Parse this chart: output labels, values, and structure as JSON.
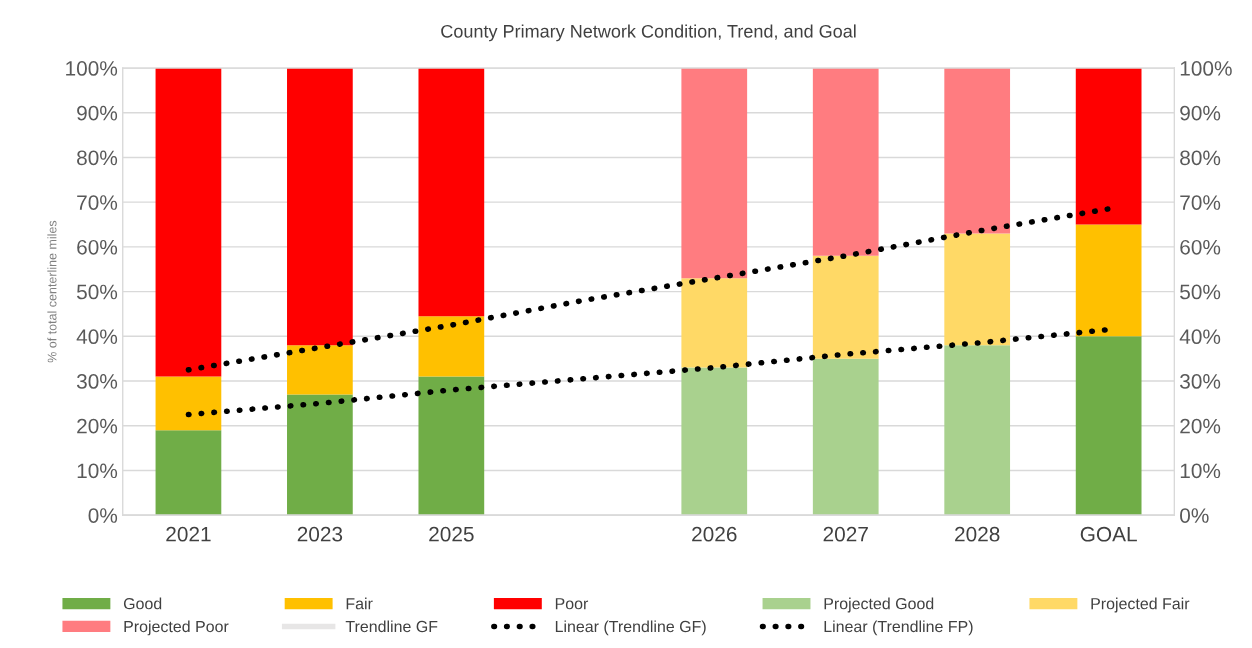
{
  "chart_data": {
    "type": "bar",
    "stacked": true,
    "title": "County Primary Network Condition, Trend, and Goal",
    "ylabel": "% of total centerline miles",
    "categories": [
      "2021",
      "2023",
      "2025",
      null,
      "2026",
      "2027",
      "2028",
      "GOAL"
    ],
    "series": [
      {
        "name": "Good",
        "color": "#70ad47",
        "values": [
          19,
          27,
          31,
          null,
          null,
          null,
          null,
          40
        ]
      },
      {
        "name": "Fair",
        "color": "#ffc000",
        "values": [
          12,
          11,
          13.5,
          null,
          null,
          null,
          null,
          25
        ]
      },
      {
        "name": "Poor",
        "color": "#ff0000",
        "values": [
          69,
          62,
          55.5,
          null,
          null,
          null,
          null,
          35
        ]
      },
      {
        "name": "Projected Good",
        "color": "#a9d18e",
        "values": [
          null,
          null,
          null,
          null,
          33,
          35,
          38,
          null
        ]
      },
      {
        "name": "Projected Fair",
        "color": "#ffd966",
        "values": [
          null,
          null,
          null,
          null,
          20,
          23,
          25,
          null
        ]
      },
      {
        "name": "Projected Poor",
        "color": "#ff7c80",
        "values": [
          null,
          null,
          null,
          null,
          47,
          42,
          37,
          null
        ]
      },
      {
        "name": "Trendline GF",
        "type": "line",
        "color": "#e7e6e6",
        "values": [
          null,
          null,
          null,
          null,
          null,
          null,
          null,
          null
        ]
      },
      {
        "name": "Linear (Trendline GF)",
        "type": "line",
        "color": "#000000",
        "line_style": "dotted",
        "values": [
          22.5,
          25,
          28,
          30.5,
          33,
          36,
          38.5,
          41.5
        ]
      },
      {
        "name": "Linear (Trendline FP)",
        "type": "line",
        "color": "#000000",
        "line_style": "dotted",
        "values": [
          32.5,
          37.5,
          42.5,
          48,
          53,
          58,
          63.5,
          68.5
        ]
      }
    ],
    "ylim": [
      0,
      100
    ],
    "yticks": [
      {
        "value": 0,
        "label": "0%"
      },
      {
        "value": 10,
        "label": "10%"
      },
      {
        "value": 20,
        "label": "20%"
      },
      {
        "value": 30,
        "label": "30%"
      },
      {
        "value": 40,
        "label": "40%"
      },
      {
        "value": 50,
        "label": "50%"
      },
      {
        "value": 60,
        "label": "60%"
      },
      {
        "value": 70,
        "label": "70%"
      },
      {
        "value": 80,
        "label": "80%"
      },
      {
        "value": 90,
        "label": "90%"
      },
      {
        "value": 100,
        "label": "100%"
      }
    ],
    "y2lim": [
      0,
      100
    ],
    "y2ticks": [
      {
        "value": 0,
        "label": "0%"
      },
      {
        "value": 10,
        "label": "10%"
      },
      {
        "value": 20,
        "label": "20%"
      },
      {
        "value": 30,
        "label": "30%"
      },
      {
        "value": 40,
        "label": "40%"
      },
      {
        "value": 50,
        "label": "50%"
      },
      {
        "value": 60,
        "label": "60%"
      },
      {
        "value": 70,
        "label": "70%"
      },
      {
        "value": 80,
        "label": "80%"
      },
      {
        "value": 90,
        "label": "90%"
      },
      {
        "value": 100,
        "label": "100%"
      }
    ],
    "grid": "y",
    "legend": "bottom"
  }
}
